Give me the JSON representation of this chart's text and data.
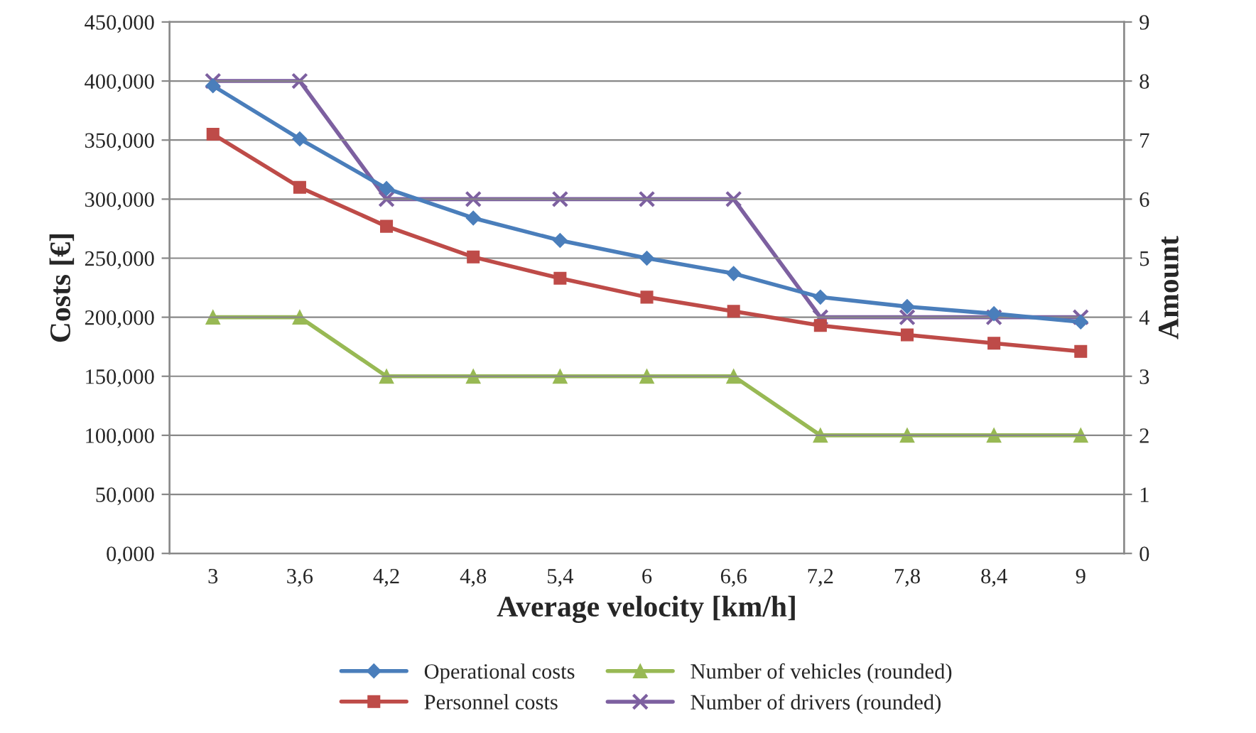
{
  "chart_data": {
    "type": "line",
    "xlabel": "Average velocity [km/h]",
    "ylabel": "Costs [€]",
    "y2label": "Amount",
    "categories": [
      "3",
      "3,6",
      "4,2",
      "4,8",
      "5,4",
      "6",
      "6,6",
      "7,2",
      "7,8",
      "8,4",
      "9"
    ],
    "series": [
      {
        "name": "Operational costs",
        "color": "#4a7ebb",
        "marker": "diamond",
        "values": [
          396,
          351,
          309,
          284,
          265,
          250,
          237,
          217,
          209,
          203,
          196
        ]
      },
      {
        "name": "Personnel costs",
        "color": "#be4b48",
        "marker": "square",
        "values": [
          355,
          310,
          277,
          251,
          233,
          217,
          205,
          193,
          185,
          178,
          171
        ]
      },
      {
        "name": "Number of vehicles (rounded)",
        "color": "#98b954",
        "marker": "triangle",
        "axis": "y2",
        "values": [
          4,
          4,
          3,
          3,
          3,
          3,
          3,
          2,
          2,
          2,
          2
        ]
      },
      {
        "name": "Number of drivers (rounded)",
        "color": "#7d60a0",
        "marker": "cross",
        "axis": "y2",
        "values": [
          8,
          8,
          6,
          6,
          6,
          6,
          6,
          4,
          4,
          4,
          4
        ]
      }
    ],
    "ylim": [
      0,
      450
    ],
    "yticks": [
      {
        "value": 0,
        "label": "0,000"
      },
      {
        "value": 50,
        "label": "50,000"
      },
      {
        "value": 100,
        "label": "100,000"
      },
      {
        "value": 150,
        "label": "150,000"
      },
      {
        "value": 200,
        "label": "200,000"
      },
      {
        "value": 250,
        "label": "250,000"
      },
      {
        "value": 300,
        "label": "300,000"
      },
      {
        "value": 350,
        "label": "350,000"
      },
      {
        "value": 400,
        "label": "400,000"
      },
      {
        "value": 450,
        "label": "450,000"
      }
    ],
    "y2lim": [
      0,
      9
    ],
    "y2ticks": [
      0,
      1,
      2,
      3,
      4,
      5,
      6,
      7,
      8,
      9
    ],
    "grid": "y",
    "legend": "bottom",
    "line_style": "solid"
  }
}
